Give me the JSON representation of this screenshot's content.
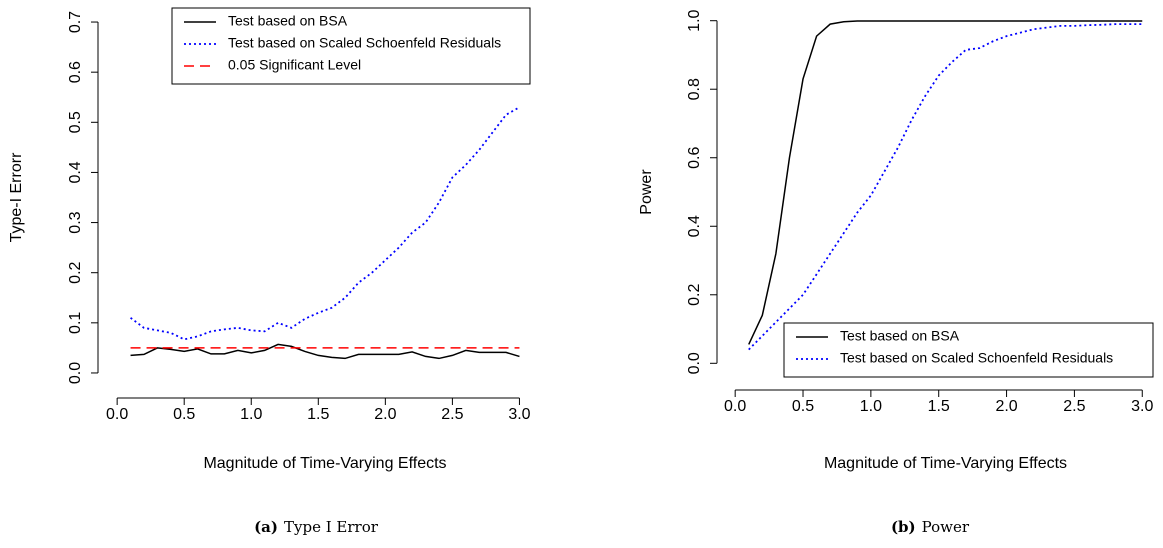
{
  "chart_data": [
    {
      "type": "line",
      "caption_label": "(a)",
      "caption": "Type I Error",
      "xlabel": "Magnitude of Time-Varying Effects",
      "ylabel": "Type-I Errorr",
      "x": [
        0.1,
        0.2,
        0.3,
        0.4,
        0.5,
        0.6,
        0.7,
        0.8,
        0.9,
        1.0,
        1.1,
        1.2,
        1.3,
        1.4,
        1.5,
        1.6,
        1.7,
        1.8,
        1.9,
        2.0,
        2.1,
        2.2,
        2.3,
        2.4,
        2.5,
        2.6,
        2.7,
        2.8,
        2.9,
        3.0
      ],
      "series": [
        {
          "name": "Test based on BSA",
          "color": "#000000",
          "linestyle": "solid",
          "values": [
            0.035,
            0.037,
            0.05,
            0.047,
            0.043,
            0.048,
            0.038,
            0.038,
            0.045,
            0.04,
            0.045,
            0.057,
            0.053,
            0.043,
            0.035,
            0.031,
            0.029,
            0.037,
            0.037,
            0.037,
            0.037,
            0.042,
            0.033,
            0.029,
            0.035,
            0.045,
            0.041,
            0.041,
            0.041,
            0.033
          ]
        },
        {
          "name": "Test based on Scaled Schoenfeld Residuals",
          "color": "#0000ff",
          "linestyle": "dotted",
          "values": [
            0.11,
            0.09,
            0.085,
            0.08,
            0.067,
            0.073,
            0.083,
            0.087,
            0.09,
            0.085,
            0.083,
            0.1,
            0.09,
            0.108,
            0.12,
            0.13,
            0.15,
            0.18,
            0.2,
            0.225,
            0.25,
            0.28,
            0.3,
            0.34,
            0.39,
            0.415,
            0.445,
            0.48,
            0.515,
            0.53
          ]
        },
        {
          "name": "0.05 Significant Level",
          "color": "#ff0000",
          "linestyle": "dashed",
          "values": [
            0.05,
            0.05,
            0.05,
            0.05,
            0.05,
            0.05,
            0.05,
            0.05,
            0.05,
            0.05,
            0.05,
            0.05,
            0.05,
            0.05,
            0.05,
            0.05,
            0.05,
            0.05,
            0.05,
            0.05,
            0.05,
            0.05,
            0.05,
            0.05,
            0.05,
            0.05,
            0.05,
            0.05,
            0.05,
            0.05
          ]
        }
      ],
      "xlim": [
        -0.016,
        3.116
      ],
      "xticks": [
        {
          "value": 0,
          "label": "0.0"
        },
        0.5,
        {
          "value": 1,
          "label": "1.0"
        },
        1.5,
        {
          "value": 2,
          "label": "2.0"
        },
        2.5,
        {
          "value": 3,
          "label": "3.0"
        }
      ],
      "ylim": [
        -0.028,
        0.728
      ],
      "yticks": [
        {
          "value": 0,
          "label": "0.0"
        },
        0.1,
        0.2,
        0.3,
        0.4,
        0.5,
        0.6,
        0.7
      ],
      "legend": "top-right"
    },
    {
      "type": "line",
      "caption_label": "(b)",
      "caption": "Power",
      "xlabel": "Magnitude of Time-Varying Effects",
      "ylabel": "Power",
      "x": [
        0.1,
        0.2,
        0.3,
        0.4,
        0.5,
        0.6,
        0.7,
        0.8,
        0.9,
        1.0,
        1.1,
        1.2,
        1.3,
        1.4,
        1.5,
        1.6,
        1.7,
        1.8,
        1.9,
        2.0,
        2.1,
        2.2,
        2.3,
        2.4,
        2.5,
        2.6,
        2.7,
        2.8,
        2.9,
        3.0
      ],
      "series": [
        {
          "name": "Test based on BSA",
          "color": "#000000",
          "linestyle": "solid",
          "values": [
            0.055,
            0.14,
            0.32,
            0.6,
            0.83,
            0.955,
            0.99,
            0.997,
            0.999,
            0.999,
            0.999,
            0.999,
            0.999,
            0.999,
            0.999,
            0.999,
            0.999,
            0.999,
            0.999,
            0.999,
            0.999,
            0.999,
            0.999,
            0.999,
            0.999,
            0.999,
            0.999,
            0.999,
            0.999,
            0.999
          ]
        },
        {
          "name": "Test based on Scaled Schoenfeld Residuals",
          "color": "#0000ff",
          "linestyle": "dotted",
          "values": [
            0.04,
            0.08,
            0.12,
            0.16,
            0.2,
            0.26,
            0.32,
            0.38,
            0.44,
            0.49,
            0.56,
            0.63,
            0.71,
            0.78,
            0.84,
            0.88,
            0.915,
            0.92,
            0.94,
            0.955,
            0.965,
            0.975,
            0.98,
            0.985,
            0.985,
            0.987,
            0.988,
            0.99,
            0.99,
            0.99
          ]
        }
      ],
      "xlim": [
        -0.016,
        3.116
      ],
      "xticks": [
        {
          "value": 0,
          "label": "0.0"
        },
        0.5,
        {
          "value": 1,
          "label": "1.0"
        },
        1.5,
        {
          "value": 2,
          "label": "2.0"
        },
        2.5,
        {
          "value": 3,
          "label": "3.0"
        }
      ],
      "ylim": [
        -0.04,
        1.04
      ],
      "yticks": [
        {
          "value": 0,
          "label": "0.0"
        },
        0.2,
        0.4,
        0.6,
        0.8,
        {
          "value": 1,
          "label": "1.0"
        }
      ],
      "legend": "bottom-right"
    }
  ]
}
